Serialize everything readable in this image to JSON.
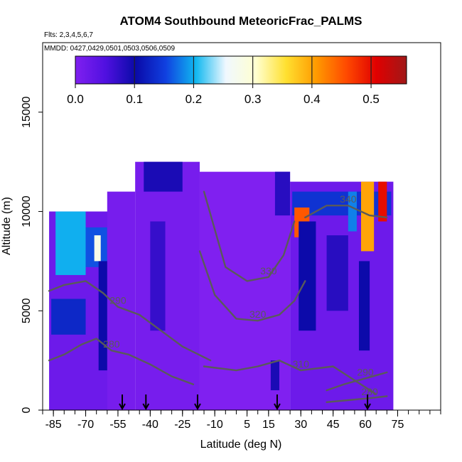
{
  "chart_data": {
    "type": "heatmap",
    "title": "ATOM4 Southbound MeteoricFrac_PALMS",
    "subtitle_flights": "Flts: 2,3,4,5,6,7",
    "subtitle_dates": "MMDD: 0427,0429,0501,0503,0506,0509",
    "xlabel": "Latitude (deg N)",
    "ylabel": "Altitude (m)",
    "xlim": [
      -90,
      95
    ],
    "ylim": [
      0,
      18500
    ],
    "x_ticks": [
      -85,
      -70,
      -55,
      -40,
      -25,
      -10,
      5,
      15,
      30,
      45,
      60,
      75
    ],
    "x_tick_labels": [
      "-85",
      "-70",
      "-55",
      "-40",
      "-25",
      "-10",
      "5",
      "15",
      "30",
      "45",
      "60",
      "75"
    ],
    "y_ticks": [
      0,
      5000,
      10000,
      15000
    ],
    "y_tick_labels": [
      "0",
      "5000",
      "10000",
      "15000"
    ],
    "colorbar": {
      "range": [
        0,
        0.56
      ],
      "ticks": [
        0.0,
        0.1,
        0.2,
        0.3,
        0.4,
        0.5
      ],
      "tick_labels": [
        "0.0",
        "0.1",
        "0.2",
        "0.3",
        "0.4",
        "0.5"
      ],
      "colors": [
        "#8020f0",
        "#5010e0",
        "#0a0aa8",
        "#1040e0",
        "#10b8f0",
        "#f0f8ff",
        "#ffffd0",
        "#ffe030",
        "#ff9a00",
        "#ff4a00",
        "#e00000",
        "#a01818"
      ]
    },
    "overpass_arrows_lat": [
      -53,
      -42,
      -18,
      19,
      61
    ],
    "cells": [
      {
        "lat": [
          -87,
          -57
        ],
        "alt": [
          0,
          10000
        ],
        "value": 0.02
      },
      {
        "lat": [
          -84,
          -70
        ],
        "alt": [
          6800,
          10000
        ],
        "value": 0.2
      },
      {
        "lat": [
          -70,
          -60
        ],
        "alt": [
          7200,
          9200
        ],
        "value": 0.16
      },
      {
        "lat": [
          -66,
          -63
        ],
        "alt": [
          7500,
          8800
        ],
        "value": 0.28
      },
      {
        "lat": [
          -86,
          -70
        ],
        "alt": [
          3800,
          5600
        ],
        "value": 0.13
      },
      {
        "lat": [
          -64,
          -58
        ],
        "alt": [
          2000,
          7500
        ],
        "value": 0.1
      },
      {
        "lat": [
          -60,
          -47
        ],
        "alt": [
          0,
          11000
        ],
        "value": 0.01
      },
      {
        "lat": [
          -47,
          -17
        ],
        "alt": [
          0,
          12500
        ],
        "value": 0.01
      },
      {
        "lat": [
          -43,
          -25
        ],
        "alt": [
          11000,
          12500
        ],
        "value": 0.09
      },
      {
        "lat": [
          -40,
          -33
        ],
        "alt": [
          4000,
          9500
        ],
        "value": 0.07
      },
      {
        "lat": [
          -17,
          25
        ],
        "alt": [
          0,
          12000
        ],
        "value": 0.0
      },
      {
        "lat": [
          18,
          25
        ],
        "alt": [
          9800,
          12000
        ],
        "value": 0.08
      },
      {
        "lat": [
          16,
          20
        ],
        "alt": [
          1000,
          2500
        ],
        "value": 0.09
      },
      {
        "lat": [
          25,
          73
        ],
        "alt": [
          0,
          11500
        ],
        "value": 0.02
      },
      {
        "lat": [
          26,
          72
        ],
        "alt": [
          9800,
          11000
        ],
        "value": 0.14
      },
      {
        "lat": [
          27,
          34
        ],
        "alt": [
          8700,
          10200
        ],
        "value": 0.45
      },
      {
        "lat": [
          29,
          37
        ],
        "alt": [
          4000,
          9500
        ],
        "value": 0.1
      },
      {
        "lat": [
          42,
          52
        ],
        "alt": [
          5000,
          8800
        ],
        "value": 0.08
      },
      {
        "lat": [
          52,
          56
        ],
        "alt": [
          9000,
          11000
        ],
        "value": 0.18
      },
      {
        "lat": [
          58,
          64
        ],
        "alt": [
          8000,
          11500
        ],
        "value": 0.4
      },
      {
        "lat": [
          66,
          70
        ],
        "alt": [
          9500,
          11500
        ],
        "value": 0.5
      },
      {
        "lat": [
          57,
          62
        ],
        "alt": [
          3000,
          7500
        ],
        "value": 0.1
      }
    ],
    "contours": [
      {
        "level": 280,
        "label": "280",
        "points": [
          [
            -87,
            2500
          ],
          [
            -80,
            2800
          ],
          [
            -72,
            3300
          ],
          [
            -65,
            3600
          ],
          [
            -58,
            3000
          ],
          [
            -50,
            2800
          ],
          [
            -40,
            2300
          ],
          [
            -30,
            1700
          ],
          [
            -20,
            1300
          ]
        ]
      },
      {
        "level": 290,
        "label": "290",
        "points": [
          [
            -87,
            6000
          ],
          [
            -80,
            6300
          ],
          [
            -70,
            6500
          ],
          [
            -62,
            5900
          ],
          [
            -55,
            5200
          ],
          [
            -45,
            4800
          ],
          [
            -35,
            4000
          ],
          [
            -25,
            3200
          ],
          [
            -12,
            2500
          ]
        ]
      },
      {
        "level": 310,
        "label": "310",
        "points": [
          [
            -15,
            2200
          ],
          [
            0,
            2000
          ],
          [
            10,
            2200
          ],
          [
            20,
            2500
          ],
          [
            30,
            2000
          ],
          [
            45,
            2200
          ],
          [
            55,
            1500
          ],
          [
            65,
            800
          ]
        ]
      },
      {
        "level": 320,
        "label": "320",
        "points": [
          [
            -17,
            8000
          ],
          [
            -10,
            5800
          ],
          [
            0,
            4600
          ],
          [
            10,
            4500
          ],
          [
            20,
            4800
          ],
          [
            27,
            5500
          ],
          [
            32,
            6500
          ]
        ]
      },
      {
        "level": 330,
        "label": "330",
        "points": [
          [
            -15,
            11000
          ],
          [
            -5,
            7200
          ],
          [
            5,
            6500
          ],
          [
            15,
            6700
          ],
          [
            22,
            7800
          ],
          [
            27,
            9500
          ]
        ]
      },
      {
        "level": 340,
        "label": "340",
        "points": [
          [
            32,
            9700
          ],
          [
            42,
            10300
          ],
          [
            52,
            10300
          ],
          [
            62,
            9800
          ],
          [
            70,
            9700
          ]
        ]
      },
      {
        "level": 290,
        "label": "290",
        "points": [
          [
            42,
            1000
          ],
          [
            50,
            1300
          ],
          [
            60,
            1600
          ],
          [
            70,
            1900
          ]
        ]
      },
      {
        "level": 280,
        "label": "280",
        "points": [
          [
            42,
            400
          ],
          [
            52,
            500
          ],
          [
            62,
            600
          ],
          [
            70,
            700
          ]
        ]
      }
    ]
  }
}
